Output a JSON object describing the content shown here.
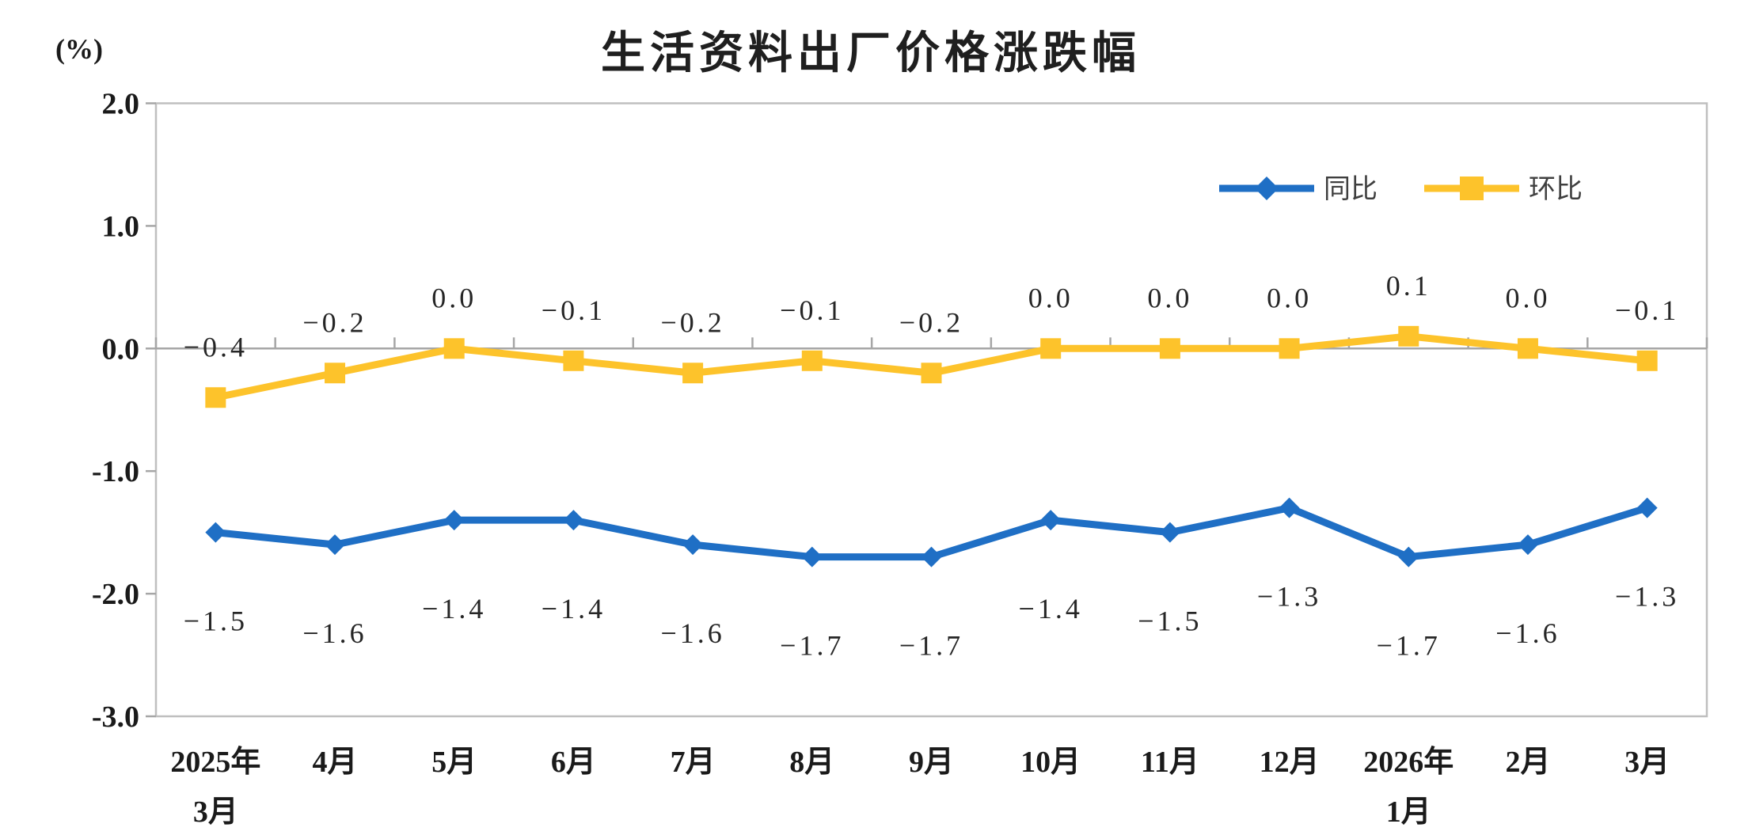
{
  "chart_data": {
    "type": "line",
    "title": "生活资料出厂价格涨跌幅",
    "unit_label": "(%)",
    "categories": [
      "2025年3月",
      "4月",
      "5月",
      "6月",
      "7月",
      "8月",
      "9月",
      "10月",
      "11月",
      "12月",
      "2026年1月",
      "2月",
      "3月"
    ],
    "category_label_lines": [
      [
        "2025年",
        "3月"
      ],
      [
        "4月"
      ],
      [
        "5月"
      ],
      [
        "6月"
      ],
      [
        "7月"
      ],
      [
        "8月"
      ],
      [
        "9月"
      ],
      [
        "10月"
      ],
      [
        "11月"
      ],
      [
        "12月"
      ],
      [
        "2026年",
        "1月"
      ],
      [
        "2月"
      ],
      [
        "3月"
      ]
    ],
    "series": [
      {
        "name": "同比",
        "marker": "diamond",
        "color": "#1f6fc5",
        "label_position": "below",
        "values": [
          -1.5,
          -1.6,
          -1.4,
          -1.4,
          -1.6,
          -1.7,
          -1.7,
          -1.4,
          -1.5,
          -1.3,
          -1.7,
          -1.6,
          -1.3
        ]
      },
      {
        "name": "环比",
        "marker": "square",
        "color": "#fdc32b",
        "label_position": "above",
        "values": [
          -0.4,
          -0.2,
          0.0,
          -0.1,
          -0.2,
          -0.1,
          -0.2,
          0.0,
          0.0,
          0.0,
          0.1,
          0.0,
          -0.1
        ]
      }
    ],
    "y_axis": {
      "min": -3.0,
      "max": 2.0,
      "step": 1.0,
      "tick_labels": [
        "2.0",
        "1.0",
        "0.0",
        "-1.0",
        "-2.0",
        "-3.0"
      ]
    },
    "legend_position": "top-right",
    "grid": false,
    "colors": {
      "plot_border": "#bfbfbf",
      "zero_axis": "#a6a6a6",
      "tick": "#a6a6a6",
      "background": "#ffffff"
    }
  }
}
